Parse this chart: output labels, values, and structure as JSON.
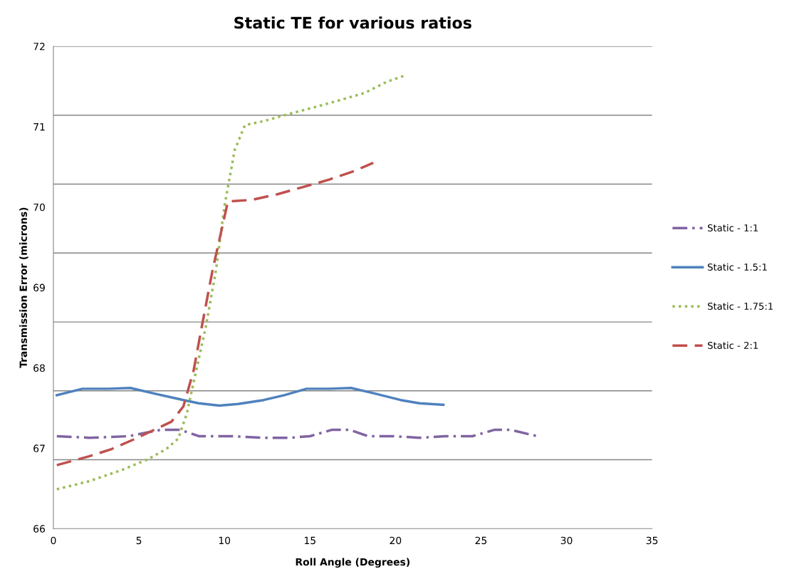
{
  "chart_data": {
    "type": "line",
    "title": "Static TE for various ratios",
    "xlabel": "Roll Angle (Degrees)",
    "ylabel": "Transmission Error (microns)",
    "xlim": [
      0,
      35
    ],
    "xticks": [
      0,
      5,
      10,
      15,
      20,
      25,
      30,
      35
    ],
    "ylim": [
      66,
      72
    ],
    "yticks": [
      66,
      67,
      68,
      69,
      70,
      71,
      72
    ],
    "grid": false,
    "legend": "right",
    "marker": "none",
    "ref_lines": [
      {
        "axis": "y",
        "value": 66.857,
        "color": "#868686",
        "line_style": "solid"
      },
      {
        "axis": "y",
        "value": 67.714,
        "color": "#868686",
        "line_style": "solid"
      },
      {
        "axis": "y",
        "value": 68.571,
        "color": "#868686",
        "line_style": "solid"
      },
      {
        "axis": "y",
        "value": 69.429,
        "color": "#868686",
        "line_style": "solid"
      },
      {
        "axis": "y",
        "value": 70.286,
        "color": "#868686",
        "line_style": "solid"
      },
      {
        "axis": "y",
        "value": 71.143,
        "color": "#868686",
        "line_style": "solid"
      },
      {
        "axis": "y",
        "value": 72,
        "color": "#868686",
        "line_style": "solid"
      }
    ],
    "series": [
      {
        "name": "Static - 1:1",
        "color": "#8064a2",
        "line_style": "dashdot",
        "x": [
          0.2,
          2.1,
          4.4,
          6.3,
          7.4,
          8.5,
          10.4,
          12.3,
          13.8,
          15.0,
          16.3,
          17.3,
          18.4,
          19.9,
          21.4,
          22.9,
          24.5,
          25.8,
          26.7,
          28.3
        ],
        "values": [
          67.15,
          67.13,
          67.15,
          67.23,
          67.23,
          67.15,
          67.15,
          67.13,
          67.13,
          67.15,
          67.23,
          67.23,
          67.15,
          67.15,
          67.13,
          67.15,
          67.15,
          67.23,
          67.23,
          67.15
        ]
      },
      {
        "name": "Static - 1.5:1",
        "color": "#4f81bd",
        "line_style": "solid",
        "x": [
          0.2,
          1.7,
          3.2,
          4.5,
          5.9,
          7.8,
          8.5,
          9.7,
          10.8,
          12.3,
          13.5,
          14.8,
          16.1,
          17.4,
          18.8,
          20.3,
          21.4,
          22.8
        ],
        "values": [
          67.66,
          67.74,
          67.74,
          67.75,
          67.68,
          67.59,
          67.56,
          67.53,
          67.55,
          67.6,
          67.66,
          67.74,
          67.74,
          67.75,
          67.68,
          67.6,
          67.56,
          67.54
        ]
      },
      {
        "name": "Static - 1.75:1",
        "color": "#9bbb59",
        "line_style": "dotted",
        "x": [
          0.2,
          2.1,
          4.0,
          5.5,
          6.6,
          7.3,
          7.8,
          8.3,
          8.9,
          9.5,
          10.0,
          10.6,
          11.2,
          12.3,
          13.8,
          15.4,
          16.9,
          18.2,
          19.5,
          20.6
        ],
        "values": [
          66.49,
          66.59,
          66.73,
          66.86,
          66.99,
          67.12,
          67.43,
          67.92,
          68.5,
          69.21,
          70.01,
          70.71,
          71.02,
          71.07,
          71.16,
          71.25,
          71.34,
          71.42,
          71.56,
          71.64
        ]
      },
      {
        "name": "Static - 2:1",
        "color": "#c0504d",
        "line_style": "dashed",
        "x": [
          0.2,
          2.1,
          3.4,
          4.7,
          5.9,
          6.9,
          7.6,
          8.2,
          8.7,
          9.3,
          9.9,
          10.2,
          11.6,
          13.1,
          14.6,
          16.1,
          17.6,
          18.7
        ],
        "values": [
          66.79,
          66.9,
          66.99,
          67.11,
          67.23,
          67.33,
          67.52,
          67.97,
          68.54,
          69.21,
          69.78,
          70.07,
          70.09,
          70.16,
          70.25,
          70.34,
          70.45,
          70.55
        ]
      }
    ]
  }
}
